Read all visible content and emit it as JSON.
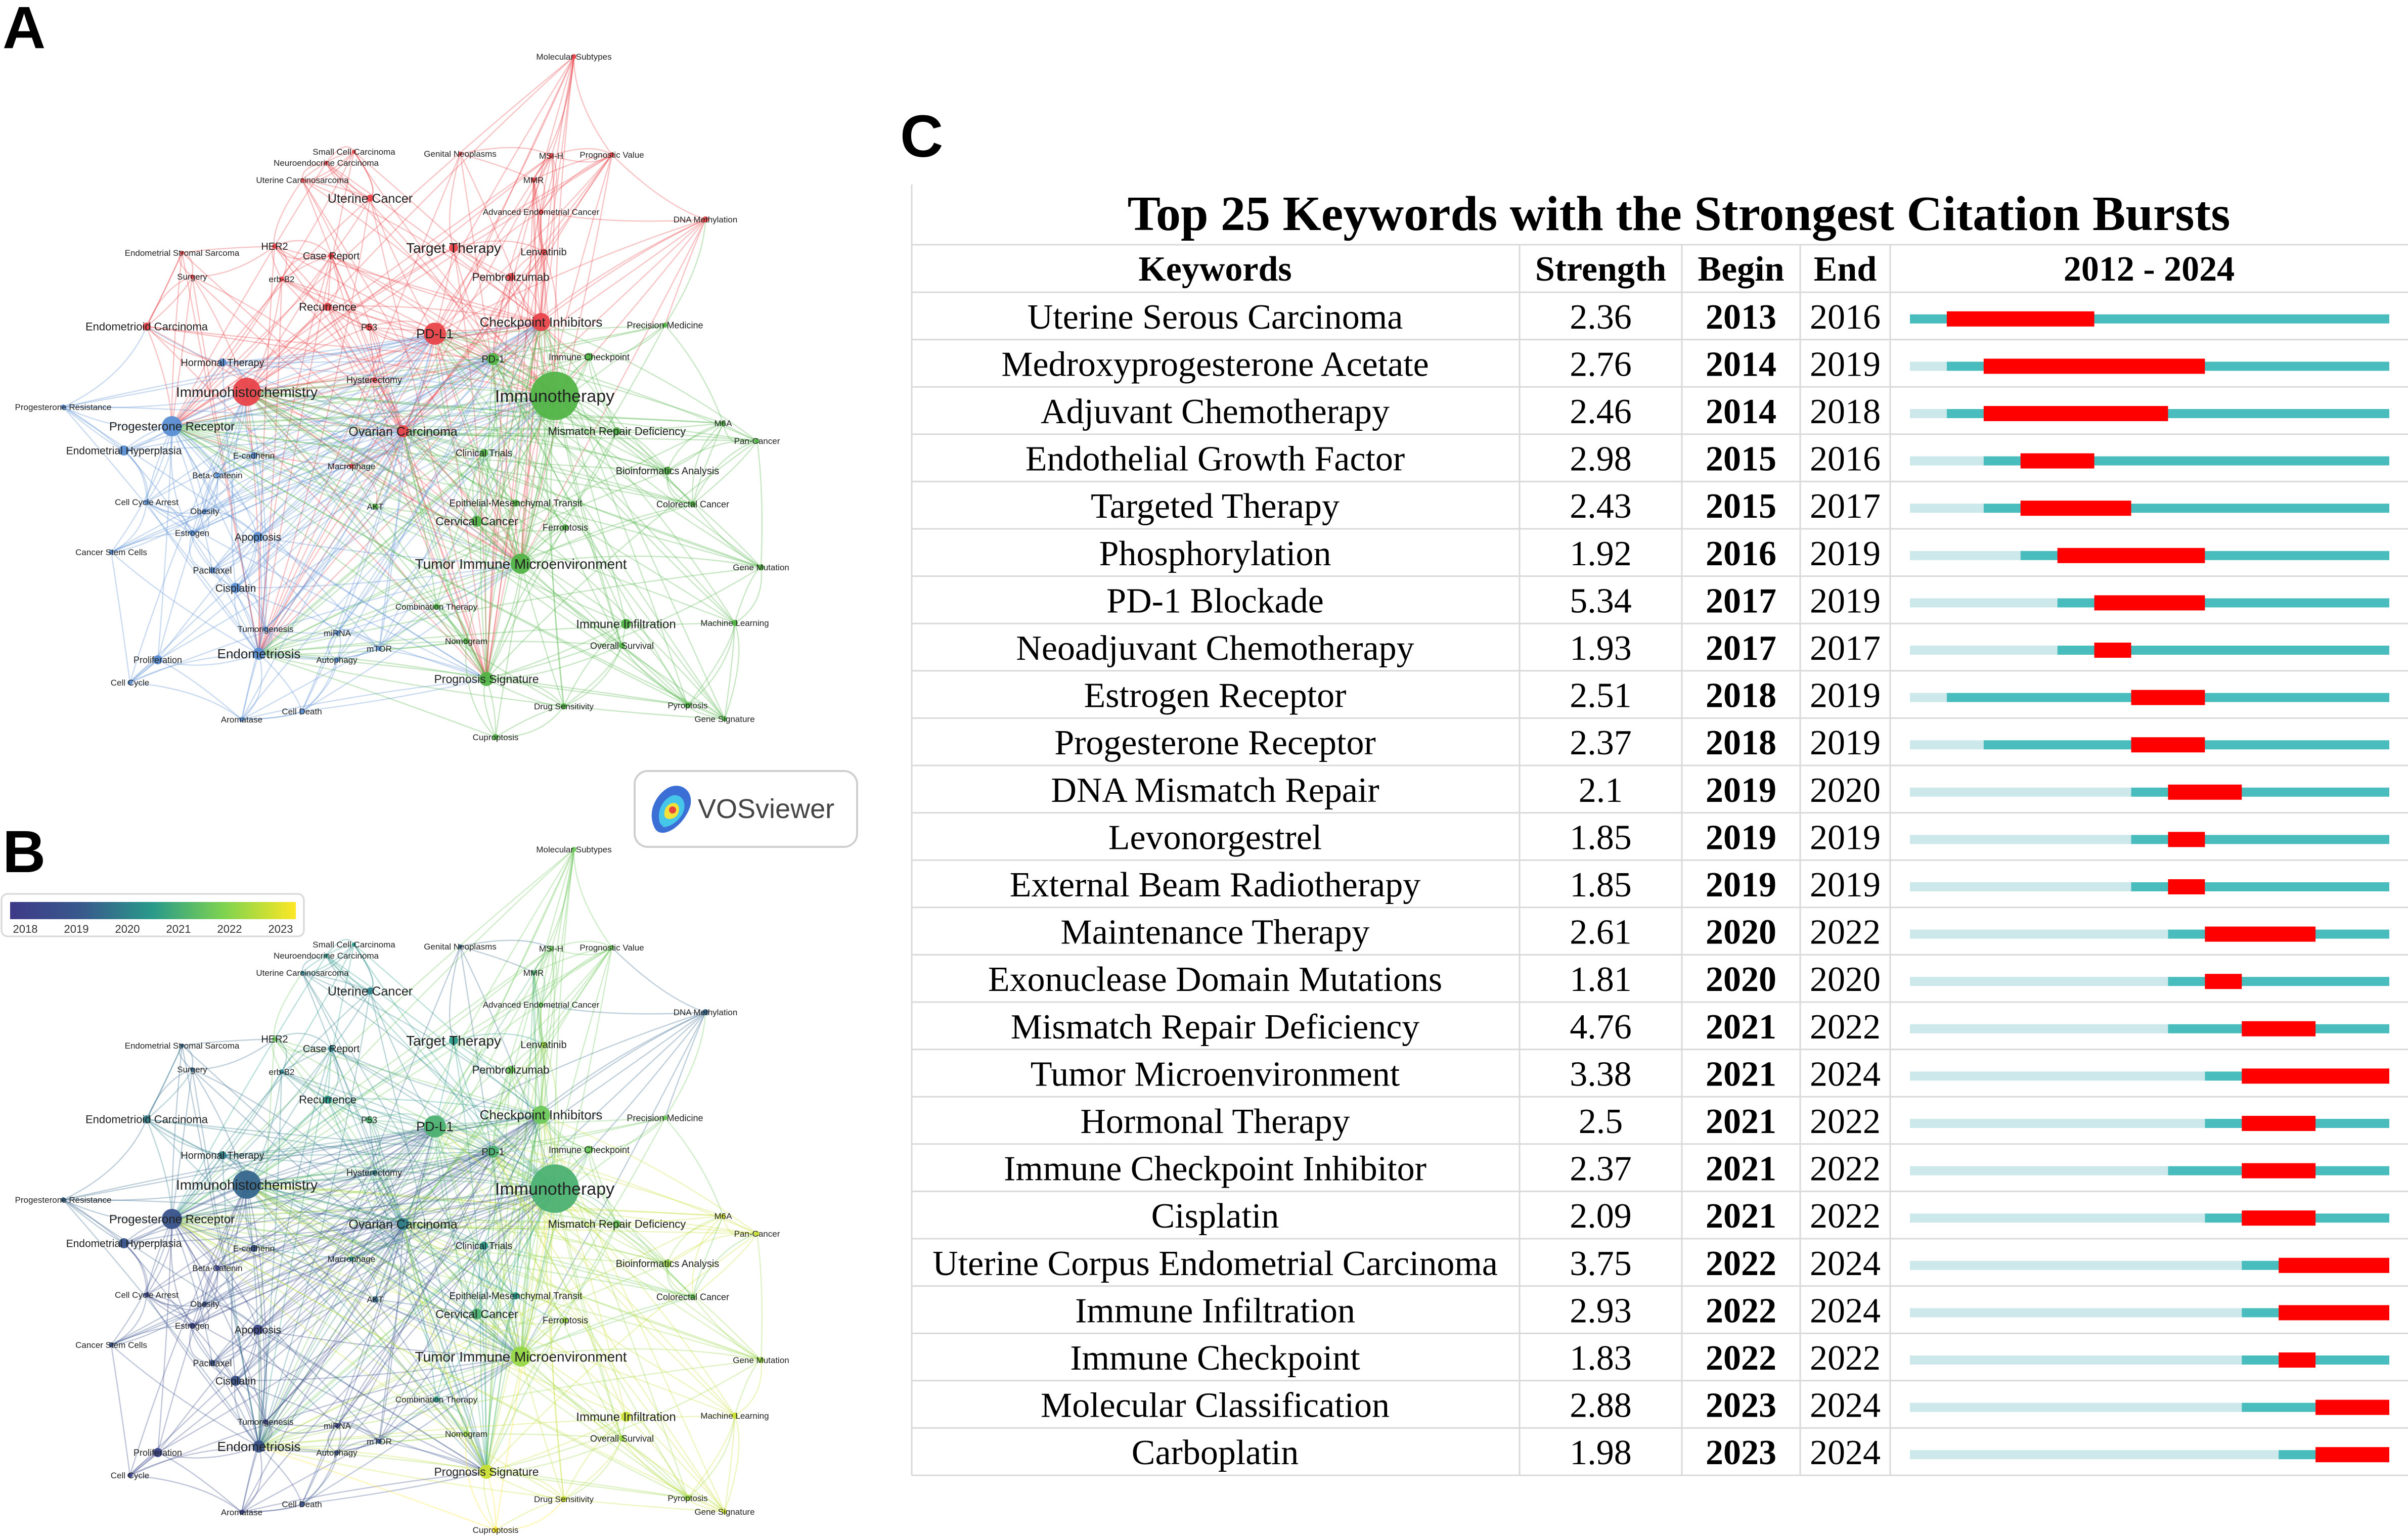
{
  "panels": {
    "a": "A",
    "b": "B",
    "c": "C"
  },
  "vosviewer": {
    "label": "VOSviewer"
  },
  "overlay_legend": {
    "ticks": [
      "2018",
      "2019",
      "2020",
      "2021",
      "2022",
      "2023"
    ]
  },
  "colors": {
    "cluster_red": "#e8454a",
    "cluster_green": "#52b447",
    "cluster_blue": "#5a8fd4",
    "burst_red": "#ff0000",
    "burst_teal": "#49bdbd",
    "burst_light": "#cde8ea"
  },
  "chart_data": [
    {
      "type": "network",
      "panel": "A",
      "coloring": "cluster",
      "nodes": [
        {
          "label": "Molecular Subtypes",
          "cluster": "red"
        },
        {
          "label": "Small Cell Carcinoma",
          "cluster": "red"
        },
        {
          "label": "Neuroendocrine Carcinoma",
          "cluster": "red"
        },
        {
          "label": "Genital Neoplasms",
          "cluster": "red"
        },
        {
          "label": "MSI-H",
          "cluster": "red"
        },
        {
          "label": "Prognostic Value",
          "cluster": "red"
        },
        {
          "label": "Uterine Carcinosarcoma",
          "cluster": "red"
        },
        {
          "label": "MMR",
          "cluster": "red"
        },
        {
          "label": "Uterine Cancer",
          "cluster": "red"
        },
        {
          "label": "Advanced Endometrial Cancer",
          "cluster": "red"
        },
        {
          "label": "DNA Methylation",
          "cluster": "red"
        },
        {
          "label": "Endometrial Stromal Sarcoma",
          "cluster": "red"
        },
        {
          "label": "HER2",
          "cluster": "red"
        },
        {
          "label": "Case Report",
          "cluster": "red"
        },
        {
          "label": "Target Therapy",
          "cluster": "red"
        },
        {
          "label": "Lenvatinib",
          "cluster": "red"
        },
        {
          "label": "Surgery",
          "cluster": "red"
        },
        {
          "label": "erb-B2",
          "cluster": "red"
        },
        {
          "label": "Pembrolizumab",
          "cluster": "red"
        },
        {
          "label": "Recurrence",
          "cluster": "red"
        },
        {
          "label": "Endometrioid Carcinoma",
          "cluster": "red"
        },
        {
          "label": "P53",
          "cluster": "red"
        },
        {
          "label": "PD-L1",
          "cluster": "red"
        },
        {
          "label": "Checkpoint Inhibitors",
          "cluster": "red"
        },
        {
          "label": "Precision Medicine",
          "cluster": "green"
        },
        {
          "label": "Hormonal Therapy",
          "cluster": "blue"
        },
        {
          "label": "PD-1",
          "cluster": "green"
        },
        {
          "label": "Immune Checkpoint",
          "cluster": "green"
        },
        {
          "label": "Hysterectomy",
          "cluster": "red"
        },
        {
          "label": "Immunohistochemistry",
          "cluster": "red"
        },
        {
          "label": "Immunotherapy",
          "cluster": "green"
        },
        {
          "label": "Progesterone Resistance",
          "cluster": "blue"
        },
        {
          "label": "Progesterone Receptor",
          "cluster": "blue"
        },
        {
          "label": "Ovarian Carcinoma",
          "cluster": "red"
        },
        {
          "label": "Mismatch Repair Deficiency",
          "cluster": "green"
        },
        {
          "label": "M6A",
          "cluster": "green"
        },
        {
          "label": "Pan-Cancer",
          "cluster": "green"
        },
        {
          "label": "Endometrial Hyperplasia",
          "cluster": "blue"
        },
        {
          "label": "E-cadherin",
          "cluster": "blue"
        },
        {
          "label": "Clinical Trials",
          "cluster": "green"
        },
        {
          "label": "Macrophage",
          "cluster": "red"
        },
        {
          "label": "Bioinformatics Analysis",
          "cluster": "green"
        },
        {
          "label": "Beta-Catenin",
          "cluster": "blue"
        },
        {
          "label": "Cell Cycle Arrest",
          "cluster": "blue"
        },
        {
          "label": "Epithelial-Mesenchymal Transit",
          "cluster": "green"
        },
        {
          "label": "Obesity",
          "cluster": "blue"
        },
        {
          "label": "AKT",
          "cluster": "green"
        },
        {
          "label": "Colorectal Cancer",
          "cluster": "green"
        },
        {
          "label": "Cervical Cancer",
          "cluster": "green"
        },
        {
          "label": "Estrogen",
          "cluster": "blue"
        },
        {
          "label": "Apoptosis",
          "cluster": "blue"
        },
        {
          "label": "Ferroptosis",
          "cluster": "green"
        },
        {
          "label": "Cancer Stem Cells",
          "cluster": "blue"
        },
        {
          "label": "Tumor Immune Microenvironment",
          "cluster": "green"
        },
        {
          "label": "Gene Mutation",
          "cluster": "green"
        },
        {
          "label": "Paclitaxel",
          "cluster": "blue"
        },
        {
          "label": "Cisplatin",
          "cluster": "blue"
        },
        {
          "label": "Combination Therapy",
          "cluster": "green"
        },
        {
          "label": "Immune Infiltration",
          "cluster": "green"
        },
        {
          "label": "Machine Learning",
          "cluster": "green"
        },
        {
          "label": "Tumorigenesis",
          "cluster": "blue"
        },
        {
          "label": "miRNA",
          "cluster": "blue"
        },
        {
          "label": "Nomogram",
          "cluster": "green"
        },
        {
          "label": "Overall Survival",
          "cluster": "green"
        },
        {
          "label": "Proliferation",
          "cluster": "blue"
        },
        {
          "label": "Endometriosis",
          "cluster": "blue"
        },
        {
          "label": "mTOR",
          "cluster": "blue"
        },
        {
          "label": "Autophagy",
          "cluster": "blue"
        },
        {
          "label": "Prognosis Signature",
          "cluster": "green"
        },
        {
          "label": "Cell Cycle",
          "cluster": "blue"
        },
        {
          "label": "Drug Sensitivity",
          "cluster": "green"
        },
        {
          "label": "Pyroptosis",
          "cluster": "green"
        },
        {
          "label": "Cell Death",
          "cluster": "blue"
        },
        {
          "label": "Gene Signature",
          "cluster": "green"
        },
        {
          "label": "Aromatase",
          "cluster": "blue"
        },
        {
          "label": "Cuproptosis",
          "cluster": "green"
        }
      ]
    },
    {
      "type": "network",
      "panel": "B",
      "coloring": "average publication year",
      "color_range": [
        2018,
        2023
      ],
      "nodes": [
        {
          "label": "Molecular Subtypes",
          "year": 2021.5
        },
        {
          "label": "Small Cell Carcinoma",
          "year": 2020.5
        },
        {
          "label": "Neuroendocrine Carcinoma",
          "year": 2020.5
        },
        {
          "label": "Genital Neoplasms",
          "year": 2019.5
        },
        {
          "label": "MSI-H",
          "year": 2021.5
        },
        {
          "label": "Prognostic Value",
          "year": 2021.5
        },
        {
          "label": "Uterine Carcinosarcoma",
          "year": 2020
        },
        {
          "label": "MMR",
          "year": 2021
        },
        {
          "label": "Uterine Cancer",
          "year": 2020
        },
        {
          "label": "Advanced Endometrial Cancer",
          "year": 2021.5
        },
        {
          "label": "DNA Methylation",
          "year": 2019.5
        },
        {
          "label": "Endometrial Stromal Sarcoma",
          "year": 2019.5
        },
        {
          "label": "HER2",
          "year": 2021.5
        },
        {
          "label": "Case Report",
          "year": 2020
        },
        {
          "label": "Target Therapy",
          "year": 2020.5
        },
        {
          "label": "Lenvatinib",
          "year": 2022
        },
        {
          "label": "Surgery",
          "year": 2019.5
        },
        {
          "label": "erb-B2",
          "year": 2020
        },
        {
          "label": "Pembrolizumab",
          "year": 2021.5
        },
        {
          "label": "Recurrence",
          "year": 2020.5
        },
        {
          "label": "Endometrioid Carcinoma",
          "year": 2020
        },
        {
          "label": "P53",
          "year": 2021
        },
        {
          "label": "PD-L1",
          "year": 2021
        },
        {
          "label": "Checkpoint Inhibitors",
          "year": 2021.5
        },
        {
          "label": "Precision Medicine",
          "year": 2021.5
        },
        {
          "label": "Hormonal Therapy",
          "year": 2020
        },
        {
          "label": "PD-1",
          "year": 2021
        },
        {
          "label": "Immune Checkpoint",
          "year": 2021.5
        },
        {
          "label": "Hysterectomy",
          "year": 2020
        },
        {
          "label": "Immunohistochemistry",
          "year": 2019.5
        },
        {
          "label": "Immunotherapy",
          "year": 2021
        },
        {
          "label": "Progesterone Resistance",
          "year": 2019.5
        },
        {
          "label": "Progesterone Receptor",
          "year": 2019
        },
        {
          "label": "Ovarian Carcinoma",
          "year": 2020
        },
        {
          "label": "Mismatch Repair Deficiency",
          "year": 2021.5
        },
        {
          "label": "M6A",
          "year": 2022.5
        },
        {
          "label": "Pan-Cancer",
          "year": 2022.5
        },
        {
          "label": "Endometrial Hyperplasia",
          "year": 2019
        },
        {
          "label": "E-cadherin",
          "year": 2019
        },
        {
          "label": "Clinical Trials",
          "year": 2020.5
        },
        {
          "label": "Macrophage",
          "year": 2020.5
        },
        {
          "label": "Bioinformatics Analysis",
          "year": 2022
        },
        {
          "label": "Beta-Catenin",
          "year": 2018.5
        },
        {
          "label": "Cell Cycle Arrest",
          "year": 2018.5
        },
        {
          "label": "Epithelial-Mesenchymal Transit",
          "year": 2020.5
        },
        {
          "label": "Obesity",
          "year": 2019
        },
        {
          "label": "AKT",
          "year": 2019.5
        },
        {
          "label": "Colorectal Cancer",
          "year": 2021.5
        },
        {
          "label": "Cervical Cancer",
          "year": 2021
        },
        {
          "label": "Estrogen",
          "year": 2018.5
        },
        {
          "label": "Apoptosis",
          "year": 2018.5
        },
        {
          "label": "Ferroptosis",
          "year": 2022
        },
        {
          "label": "Cancer Stem Cells",
          "year": 2019
        },
        {
          "label": "Tumor Immune Microenvironment",
          "year": 2022
        },
        {
          "label": "Gene Mutation",
          "year": 2022
        },
        {
          "label": "Paclitaxel",
          "year": 2019
        },
        {
          "label": "Cisplatin",
          "year": 2019
        },
        {
          "label": "Combination Therapy",
          "year": 2020.5
        },
        {
          "label": "Immune Infiltration",
          "year": 2022.5
        },
        {
          "label": "Machine Learning",
          "year": 2022.5
        },
        {
          "label": "Tumorigenesis",
          "year": 2018.5
        },
        {
          "label": "miRNA",
          "year": 2018.5
        },
        {
          "label": "Nomogram",
          "year": 2022
        },
        {
          "label": "Overall Survival",
          "year": 2022
        },
        {
          "label": "Proliferation",
          "year": 2018.5
        },
        {
          "label": "Endometriosis",
          "year": 2019
        },
        {
          "label": "mTOR",
          "year": 2019
        },
        {
          "label": "Autophagy",
          "year": 2019
        },
        {
          "label": "Prognosis Signature",
          "year": 2022.5
        },
        {
          "label": "Cell Cycle",
          "year": 2018.5
        },
        {
          "label": "Drug Sensitivity",
          "year": 2022.5
        },
        {
          "label": "Pyroptosis",
          "year": 2022
        },
        {
          "label": "Cell Death",
          "year": 2019
        },
        {
          "label": "Gene Signature",
          "year": 2022.5
        },
        {
          "label": "Aromatase",
          "year": 2018.5
        },
        {
          "label": "Cuproptosis",
          "year": 2023
        }
      ]
    },
    {
      "type": "table",
      "panel": "C",
      "title": "Top 25 Keywords with the Strongest Citation Bursts",
      "columns": [
        "Keywords",
        "Strength",
        "Begin",
        "End",
        "2012 - 2024"
      ],
      "year_range": [
        2012,
        2024
      ],
      "rows": [
        {
          "keyword": "Uterine Serous Carcinoma",
          "strength": "2.36",
          "begin": 2013,
          "end": 2016,
          "first": 2012
        },
        {
          "keyword": "Medroxyprogesterone Acetate",
          "strength": "2.76",
          "begin": 2014,
          "end": 2019,
          "first": 2013
        },
        {
          "keyword": "Adjuvant Chemotherapy",
          "strength": "2.46",
          "begin": 2014,
          "end": 2018,
          "first": 2013
        },
        {
          "keyword": "Endothelial Growth Factor",
          "strength": "2.98",
          "begin": 2015,
          "end": 2016,
          "first": 2014
        },
        {
          "keyword": "Targeted Therapy",
          "strength": "2.43",
          "begin": 2015,
          "end": 2017,
          "first": 2014
        },
        {
          "keyword": "Phosphorylation",
          "strength": "1.92",
          "begin": 2016,
          "end": 2019,
          "first": 2015
        },
        {
          "keyword": "PD-1 Blockade",
          "strength": "5.34",
          "begin": 2017,
          "end": 2019,
          "first": 2016
        },
        {
          "keyword": "Neoadjuvant Chemotherapy",
          "strength": "1.93",
          "begin": 2017,
          "end": 2017,
          "first": 2016
        },
        {
          "keyword": "Estrogen Receptor",
          "strength": "2.51",
          "begin": 2018,
          "end": 2019,
          "first": 2013
        },
        {
          "keyword": "Progesterone Receptor",
          "strength": "2.37",
          "begin": 2018,
          "end": 2019,
          "first": 2014
        },
        {
          "keyword": "DNA Mismatch Repair",
          "strength": "2.1",
          "begin": 2019,
          "end": 2020,
          "first": 2018
        },
        {
          "keyword": "Levonorgestrel",
          "strength": "1.85",
          "begin": 2019,
          "end": 2019,
          "first": 2018
        },
        {
          "keyword": "External Beam Radiotherapy",
          "strength": "1.85",
          "begin": 2019,
          "end": 2019,
          "first": 2018
        },
        {
          "keyword": "Maintenance Therapy",
          "strength": "2.61",
          "begin": 2020,
          "end": 2022,
          "first": 2019
        },
        {
          "keyword": "Exonuclease Domain Mutations",
          "strength": "1.81",
          "begin": 2020,
          "end": 2020,
          "first": 2019
        },
        {
          "keyword": "Mismatch Repair Deficiency",
          "strength": "4.76",
          "begin": 2021,
          "end": 2022,
          "first": 2019
        },
        {
          "keyword": "Tumor Microenvironment",
          "strength": "3.38",
          "begin": 2021,
          "end": 2024,
          "first": 2020
        },
        {
          "keyword": "Hormonal Therapy",
          "strength": "2.5",
          "begin": 2021,
          "end": 2022,
          "first": 2020
        },
        {
          "keyword": "Immune Checkpoint Inhibitor",
          "strength": "2.37",
          "begin": 2021,
          "end": 2022,
          "first": 2019
        },
        {
          "keyword": "Cisplatin",
          "strength": "2.09",
          "begin": 2021,
          "end": 2022,
          "first": 2020
        },
        {
          "keyword": "Uterine Corpus Endometrial Carcinoma",
          "strength": "3.75",
          "begin": 2022,
          "end": 2024,
          "first": 2021
        },
        {
          "keyword": "Immune Infiltration",
          "strength": "2.93",
          "begin": 2022,
          "end": 2024,
          "first": 2021
        },
        {
          "keyword": "Immune Checkpoint",
          "strength": "1.83",
          "begin": 2022,
          "end": 2022,
          "first": 2021
        },
        {
          "keyword": "Molecular Classification",
          "strength": "2.88",
          "begin": 2023,
          "end": 2024,
          "first": 2021
        },
        {
          "keyword": "Carboplatin",
          "strength": "1.98",
          "begin": 2023,
          "end": 2024,
          "first": 2022
        }
      ]
    }
  ]
}
